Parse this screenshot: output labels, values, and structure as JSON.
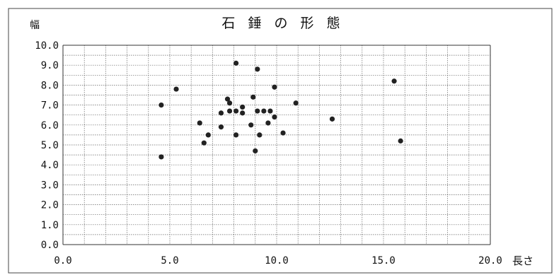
{
  "chart_data": {
    "type": "scatter",
    "title": "石 錘 の 形 態",
    "xlabel": "長さ",
    "ylabel": "幅",
    "xlim": [
      0,
      20
    ],
    "ylim": [
      0,
      10
    ],
    "x_ticks": [
      "0.0",
      "5.0",
      "10.0",
      "15.0",
      "20.0"
    ],
    "y_ticks": [
      "0.0",
      "1.0",
      "2.0",
      "3.0",
      "4.0",
      "5.0",
      "6.0",
      "7.0",
      "8.0",
      "9.0",
      "10.0"
    ],
    "grid": true,
    "marker_color": "#222222",
    "points": [
      {
        "x": 4.6,
        "y": 7.0
      },
      {
        "x": 4.6,
        "y": 4.4
      },
      {
        "x": 5.3,
        "y": 7.8
      },
      {
        "x": 6.4,
        "y": 6.1
      },
      {
        "x": 6.6,
        "y": 5.1
      },
      {
        "x": 6.8,
        "y": 5.5
      },
      {
        "x": 7.4,
        "y": 6.6
      },
      {
        "x": 7.4,
        "y": 5.9
      },
      {
        "x": 7.7,
        "y": 7.3
      },
      {
        "x": 7.8,
        "y": 6.7
      },
      {
        "x": 7.8,
        "y": 7.1
      },
      {
        "x": 8.1,
        "y": 9.1
      },
      {
        "x": 8.1,
        "y": 6.7
      },
      {
        "x": 8.1,
        "y": 5.5
      },
      {
        "x": 8.4,
        "y": 6.9
      },
      {
        "x": 8.4,
        "y": 6.6
      },
      {
        "x": 8.8,
        "y": 6.0
      },
      {
        "x": 8.9,
        "y": 7.4
      },
      {
        "x": 9.0,
        "y": 4.7
      },
      {
        "x": 9.1,
        "y": 8.8
      },
      {
        "x": 9.1,
        "y": 6.7
      },
      {
        "x": 9.2,
        "y": 5.5
      },
      {
        "x": 9.4,
        "y": 6.7
      },
      {
        "x": 9.6,
        "y": 6.1
      },
      {
        "x": 9.7,
        "y": 6.7
      },
      {
        "x": 9.9,
        "y": 7.9
      },
      {
        "x": 9.9,
        "y": 6.4
      },
      {
        "x": 10.3,
        "y": 5.6
      },
      {
        "x": 10.9,
        "y": 7.1
      },
      {
        "x": 12.6,
        "y": 6.3
      },
      {
        "x": 15.5,
        "y": 8.2
      },
      {
        "x": 15.8,
        "y": 5.2
      }
    ]
  }
}
